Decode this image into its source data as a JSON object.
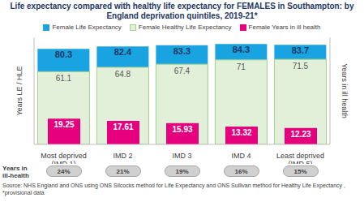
{
  "chart_data": {
    "type": "bar",
    "title": "Life expectancy compared with healthy life expectancy for FEMALES in Southampton: by England deprivation quintiles, 2019-21*",
    "categories": [
      "Most deprived (IMD 1)",
      "IMD 2",
      "IMD 3",
      "IMD 4",
      "Least deprived (IMD 5)"
    ],
    "series": [
      {
        "name": "Female Life Expectancy",
        "color": "#19a3e0",
        "values": [
          80.3,
          82.4,
          83.3,
          84.3,
          83.7
        ]
      },
      {
        "name": "Female Healthy Life Expectancy",
        "color": "#e2f0d9",
        "values": [
          61.1,
          64.8,
          67.4,
          71.0,
          71.5
        ]
      },
      {
        "name": "Female Years in ill health",
        "color": "#e6007e",
        "axis": "y2",
        "values": [
          19.25,
          17.61,
          15.93,
          13.32,
          12.23
        ]
      }
    ],
    "y_label": "Years LE / HLE",
    "y2_label": "Years in ill health",
    "ylim": [
      0,
      90
    ],
    "yticks": [
      0,
      90
    ],
    "y2lim": [
      0,
      80
    ],
    "y2ticks": [
      0,
      80
    ],
    "tick_labels": "x",
    "grid": false,
    "data_labels": true,
    "ill_health_share": {
      "label": "Years in ill-health",
      "values": [
        24,
        21,
        19,
        16,
        15
      ],
      "value_labels": [
        "24%",
        "21%",
        "19%",
        "16%",
        "15%"
      ]
    },
    "source": "Source: NHS England and ONS using ONS Silcocks method for Life Expectancy and ONS Sullivan method for Healthy Life Expectancy ,",
    "note": "*provisional data"
  }
}
